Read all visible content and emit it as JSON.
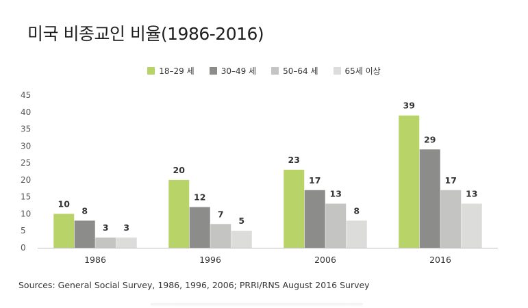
{
  "title": "미국 비종교인 비율(1986-2016)",
  "source": "Sources: General Social Survey, 1986, 1996, 2006; PRRI/RNS August 2016 Survey",
  "chart_data": {
    "type": "bar",
    "categories": [
      "1986",
      "1996",
      "2006",
      "2016"
    ],
    "series": [
      {
        "name": "18–29 세",
        "color": "#b8d468",
        "values": [
          10,
          20,
          23,
          39
        ]
      },
      {
        "name": "30–49 세",
        "color": "#8c8c8a",
        "values": [
          8,
          12,
          17,
          29
        ]
      },
      {
        "name": "50–64 세",
        "color": "#c4c4c2",
        "values": [
          3,
          7,
          13,
          17
        ]
      },
      {
        "name": "65세 이상",
        "color": "#dcdcda",
        "values": [
          3,
          5,
          8,
          13
        ]
      }
    ],
    "yticks": [
      0,
      5,
      10,
      15,
      20,
      25,
      30,
      35,
      40,
      45
    ],
    "ylim": [
      0,
      45
    ],
    "legend_position": "top-center",
    "grid": false
  }
}
